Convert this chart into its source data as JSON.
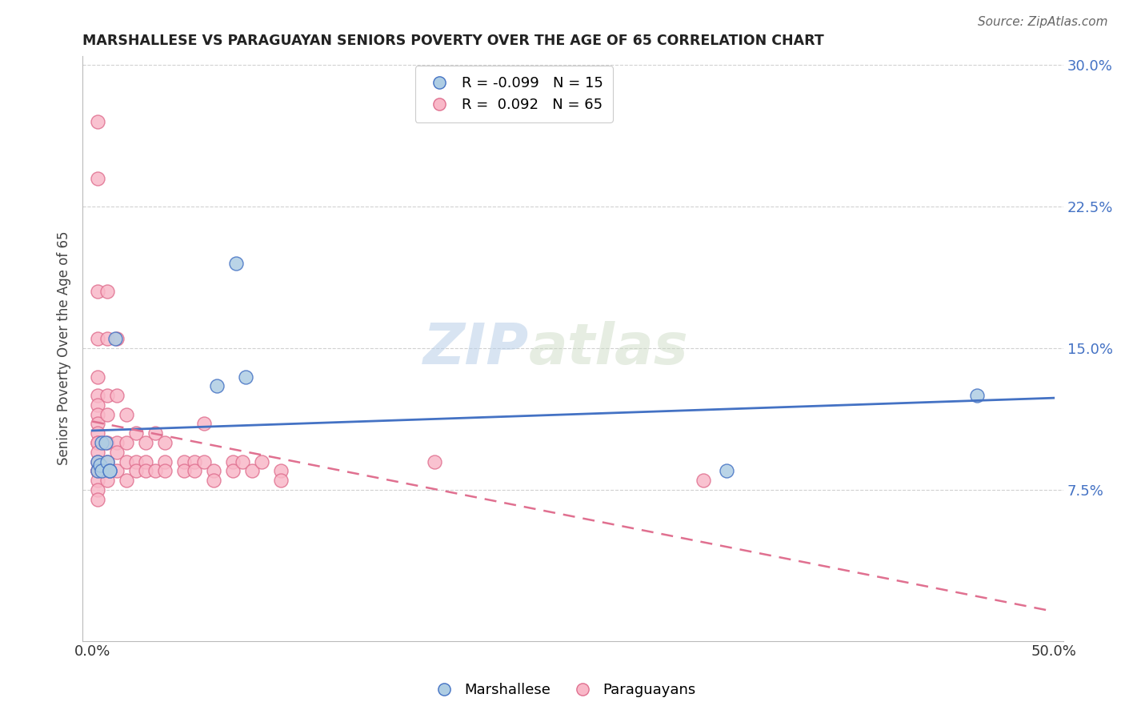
{
  "title": "MARSHALLESE VS PARAGUAYAN SENIORS POVERTY OVER THE AGE OF 65 CORRELATION CHART",
  "source": "Source: ZipAtlas.com",
  "ylabel": "Seniors Poverty Over the Age of 65",
  "xlim": [
    -0.005,
    0.505
  ],
  "ylim": [
    -0.005,
    0.305
  ],
  "xticks": [
    0.0,
    0.1,
    0.2,
    0.3,
    0.4,
    0.5
  ],
  "xtick_labels": [
    "0.0%",
    "",
    "",
    "",
    "",
    "50.0%"
  ],
  "yticks": [
    0.075,
    0.15,
    0.225,
    0.3
  ],
  "ytick_labels": [
    "7.5%",
    "15.0%",
    "22.5%",
    "30.0%"
  ],
  "marshallese_R": -0.099,
  "marshallese_N": 15,
  "paraguayan_R": 0.092,
  "paraguayan_N": 65,
  "marshallese_color": "#aecde3",
  "paraguayan_color": "#f9b8c8",
  "trendline_marshallese_color": "#4472c4",
  "trendline_paraguayan_color": "#e07090",
  "watermark_zip": "ZIP",
  "watermark_atlas": "atlas",
  "marshallese_x": [
    0.003,
    0.003,
    0.004,
    0.005,
    0.005,
    0.007,
    0.008,
    0.009,
    0.009,
    0.012,
    0.065,
    0.075,
    0.08,
    0.33,
    0.46
  ],
  "marshallese_y": [
    0.09,
    0.085,
    0.088,
    0.1,
    0.085,
    0.1,
    0.09,
    0.085,
    0.085,
    0.155,
    0.13,
    0.195,
    0.135,
    0.085,
    0.125
  ],
  "paraguayan_x": [
    0.003,
    0.003,
    0.003,
    0.003,
    0.003,
    0.003,
    0.003,
    0.003,
    0.003,
    0.003,
    0.003,
    0.003,
    0.003,
    0.003,
    0.003,
    0.003,
    0.003,
    0.003,
    0.003,
    0.003,
    0.008,
    0.008,
    0.008,
    0.008,
    0.008,
    0.008,
    0.008,
    0.008,
    0.013,
    0.013,
    0.013,
    0.013,
    0.013,
    0.018,
    0.018,
    0.018,
    0.018,
    0.023,
    0.023,
    0.023,
    0.028,
    0.028,
    0.028,
    0.033,
    0.033,
    0.038,
    0.038,
    0.038,
    0.048,
    0.048,
    0.053,
    0.053,
    0.058,
    0.058,
    0.063,
    0.063,
    0.073,
    0.073,
    0.078,
    0.083,
    0.088,
    0.098,
    0.098,
    0.178,
    0.318
  ],
  "paraguayan_y": [
    0.27,
    0.24,
    0.18,
    0.155,
    0.135,
    0.125,
    0.12,
    0.115,
    0.11,
    0.105,
    0.1,
    0.1,
    0.095,
    0.09,
    0.085,
    0.085,
    0.085,
    0.08,
    0.075,
    0.07,
    0.18,
    0.155,
    0.125,
    0.115,
    0.1,
    0.09,
    0.085,
    0.08,
    0.155,
    0.125,
    0.1,
    0.095,
    0.085,
    0.115,
    0.1,
    0.09,
    0.08,
    0.105,
    0.09,
    0.085,
    0.1,
    0.09,
    0.085,
    0.105,
    0.085,
    0.1,
    0.09,
    0.085,
    0.09,
    0.085,
    0.09,
    0.085,
    0.11,
    0.09,
    0.085,
    0.08,
    0.09,
    0.085,
    0.09,
    0.085,
    0.09,
    0.085,
    0.08,
    0.09,
    0.08
  ]
}
